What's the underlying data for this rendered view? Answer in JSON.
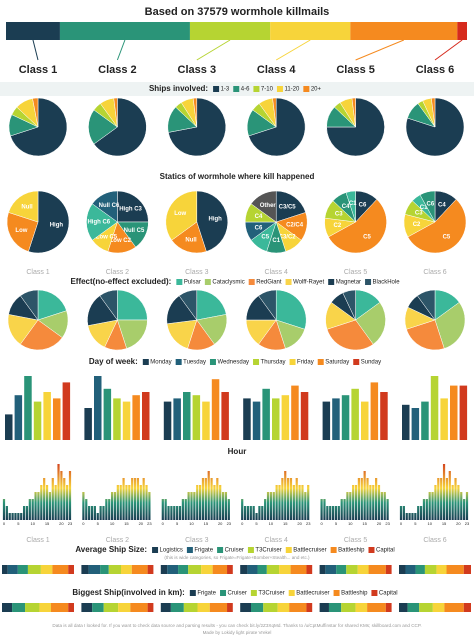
{
  "chart_data": [
    {
      "type": "bar",
      "title": "Based on 37579 wormhole killmails",
      "categories": [
        "Class 1",
        "Class 2",
        "Class 3",
        "Class 4",
        "Class 5",
        "Class 6"
      ],
      "values": [
        11.7,
        28.2,
        17.4,
        17.4,
        23.2,
        2.1
      ],
      "colors": [
        "#1b3d52",
        "#2a9478",
        "#b6d432",
        "#f7d43a",
        "#f58a1f",
        "#d62a1d"
      ]
    },
    {
      "type": "pie",
      "title": "Ships involved:",
      "categories": [
        "1-3",
        "4-6",
        "7-10",
        "11-20",
        "20+"
      ],
      "colors": [
        "#1b3d52",
        "#2a9478",
        "#b6d432",
        "#f7d43a",
        "#f58a1f"
      ],
      "series": [
        {
          "values": [
            70,
            12,
            5,
            10,
            3
          ]
        },
        {
          "values": [
            65,
            20,
            5,
            8,
            2
          ]
        },
        {
          "values": [
            72,
            15,
            4,
            7,
            2
          ]
        },
        {
          "values": [
            70,
            15,
            5,
            8,
            2
          ]
        },
        {
          "values": [
            75,
            12,
            4,
            7,
            2
          ]
        },
        {
          "values": [
            80,
            10,
            3,
            5,
            2
          ]
        }
      ]
    },
    {
      "type": "pie",
      "title": "Statics of wormhole where kill happened",
      "series": [
        {
          "labels": [
            "High",
            "Low",
            "Null"
          ],
          "colors": [
            "#1b3d52",
            "#f58a1f",
            "#f7d43a"
          ],
          "values": [
            55,
            25,
            20
          ]
        },
        {
          "labels": [
            "High C3",
            "Null C5",
            "Low C2",
            "Low C5",
            "High C6",
            "Null C6"
          ],
          "colors": [
            "#1b3d52",
            "#2a9478",
            "#f58a1f",
            "#f7d43a",
            "#3bb89a",
            "#22607a"
          ],
          "values": [
            25,
            15,
            15,
            10,
            20,
            15
          ]
        },
        {
          "labels": [
            "High",
            "Null",
            "Low"
          ],
          "colors": [
            "#1b3d52",
            "#f58a1f",
            "#f7d43a"
          ],
          "values": [
            45,
            20,
            35
          ]
        },
        {
          "labels": [
            "C3/C5",
            "C2/C4",
            "C3/C2",
            "C1",
            "C5",
            "C6",
            "C4",
            "Other"
          ],
          "colors": [
            "#1b3d52",
            "#f58a1f",
            "#f7d43a",
            "#2a9478",
            "#3bb89a",
            "#22607a",
            "#b6d432",
            "#555555"
          ],
          "values": [
            20,
            15,
            10,
            10,
            10,
            10,
            10,
            15
          ]
        },
        {
          "labels": [
            "C6",
            "C5",
            "C2",
            "C3",
            "C4",
            "C1"
          ],
          "colors": [
            "#1b3d52",
            "#f58a1f",
            "#f7d43a",
            "#b6d432",
            "#2a9478",
            "#3bb89a"
          ],
          "values": [
            12,
            55,
            10,
            10,
            8,
            5
          ]
        },
        {
          "labels": [
            "C4",
            "C5",
            "C2",
            "C3",
            "C1",
            "C6"
          ],
          "colors": [
            "#1b3d52",
            "#f58a1f",
            "#f7d43a",
            "#b6d432",
            "#3bb89a",
            "#2a9478"
          ],
          "values": [
            12,
            55,
            12,
            8,
            5,
            8
          ]
        }
      ]
    },
    {
      "type": "pie",
      "title": "Effect(no-effect excluded):",
      "categories": [
        "Pulsar",
        "Cataclysmic",
        "RedGiant",
        "Wolff-Rayet",
        "Magnetar",
        "BlackHole"
      ],
      "colors": [
        "#3bb89a",
        "#a8cd6b",
        "#f58a3c",
        "#f9d44a",
        "#1b3d52",
        "#2d5568"
      ],
      "series": [
        {
          "values": [
            20,
            15,
            25,
            18,
            12,
            10
          ]
        },
        {
          "values": [
            25,
            20,
            12,
            15,
            18,
            10
          ]
        },
        {
          "values": [
            22,
            18,
            15,
            18,
            17,
            10
          ]
        },
        {
          "values": [
            30,
            15,
            15,
            15,
            15,
            10
          ]
        },
        {
          "values": [
            15,
            25,
            30,
            15,
            8,
            7
          ]
        },
        {
          "values": [
            15,
            30,
            25,
            12,
            8,
            10
          ]
        }
      ]
    },
    {
      "type": "bar",
      "title": "Day of week:",
      "categories": [
        "Monday",
        "Tuesday",
        "Wednesday",
        "Thursday",
        "Friday",
        "Saturday",
        "Sunday"
      ],
      "colors": [
        "#1b3d52",
        "#22607a",
        "#2a9478",
        "#b6d432",
        "#f7d43a",
        "#f58a1f",
        "#d13a1e"
      ],
      "series": [
        {
          "values": [
            8,
            14,
            20,
            12,
            15,
            13,
            18
          ]
        },
        {
          "values": [
            10,
            20,
            16,
            13,
            12,
            14,
            15
          ]
        },
        {
          "values": [
            12,
            13,
            15,
            14,
            12,
            19,
            15
          ]
        },
        {
          "values": [
            13,
            12,
            16,
            13,
            14,
            17,
            15
          ]
        },
        {
          "values": [
            12,
            13,
            14,
            16,
            12,
            18,
            15
          ]
        },
        {
          "values": [
            11,
            10,
            12,
            20,
            13,
            17,
            17
          ]
        }
      ]
    },
    {
      "type": "histogram",
      "title": "Hour",
      "x": [
        0,
        1,
        2,
        3,
        4,
        5,
        6,
        7,
        8,
        9,
        10,
        11,
        12,
        13,
        14,
        15,
        16,
        17,
        18,
        19,
        20,
        21,
        22,
        23
      ],
      "xlim": [
        0,
        23
      ],
      "xticks": [
        0,
        5,
        10,
        15,
        20,
        23
      ],
      "series": [
        {
          "values": [
            3,
            2,
            1,
            1,
            1,
            1,
            1,
            2,
            2,
            3,
            3,
            4,
            4,
            5,
            6,
            5,
            4,
            6,
            5,
            8,
            7,
            6,
            5,
            7
          ]
        },
        {
          "values": [
            4,
            3,
            2,
            2,
            2,
            1,
            2,
            2,
            3,
            3,
            4,
            4,
            5,
            5,
            6,
            5,
            5,
            6,
            6,
            6,
            5,
            6,
            5,
            4
          ]
        },
        {
          "values": [
            3,
            3,
            2,
            2,
            2,
            2,
            2,
            3,
            3,
            4,
            4,
            4,
            5,
            5,
            6,
            6,
            7,
            6,
            5,
            6,
            5,
            4,
            4,
            3
          ]
        },
        {
          "values": [
            3,
            2,
            2,
            2,
            2,
            1,
            2,
            2,
            3,
            4,
            4,
            4,
            5,
            5,
            6,
            7,
            6,
            6,
            5,
            6,
            5,
            5,
            4,
            5
          ]
        },
        {
          "values": [
            3,
            3,
            2,
            2,
            2,
            2,
            2,
            3,
            3,
            4,
            4,
            5,
            5,
            6,
            6,
            7,
            6,
            5,
            5,
            6,
            5,
            4,
            4,
            3
          ]
        },
        {
          "values": [
            2,
            2,
            1,
            1,
            1,
            1,
            2,
            2,
            3,
            3,
            4,
            4,
            5,
            6,
            6,
            8,
            6,
            7,
            5,
            6,
            5,
            4,
            3,
            4
          ]
        }
      ]
    },
    {
      "type": "stacked",
      "title": "Average Ship Size:",
      "note": "(this is wide categories, so Frigate=Frigate+Bomber+Stealth... and etc.)",
      "categories": [
        "Logistics",
        "Frigate",
        "Cruiser",
        "T3Cruiser",
        "Battlecruiser",
        "Battleship",
        "Capital"
      ],
      "colors": [
        "#1b3d52",
        "#22607a",
        "#2a9478",
        "#b6d432",
        "#f7d43a",
        "#f58a1f",
        "#d13a1e"
      ],
      "series": [
        {
          "values": [
            8,
            14,
            14,
            18,
            16,
            22,
            8
          ]
        },
        {
          "values": [
            10,
            16,
            12,
            17,
            15,
            22,
            8
          ]
        },
        {
          "values": [
            9,
            15,
            14,
            18,
            16,
            20,
            8
          ]
        },
        {
          "values": [
            10,
            14,
            13,
            17,
            16,
            22,
            8
          ]
        },
        {
          "values": [
            8,
            15,
            14,
            16,
            15,
            24,
            8
          ]
        },
        {
          "values": [
            9,
            14,
            13,
            16,
            14,
            24,
            10
          ]
        }
      ]
    },
    {
      "type": "stacked",
      "title": "Biggest Ship(involved in km):",
      "categories": [
        "Frigate",
        "Cruiser",
        "T3Cruiser",
        "Battlecruiser",
        "Battleship",
        "Capital"
      ],
      "colors": [
        "#1b3d52",
        "#2a9478",
        "#b6d432",
        "#f7d43a",
        "#f58a1f",
        "#d13a1e"
      ],
      "series": [
        {
          "values": [
            14,
            18,
            20,
            16,
            24,
            8
          ]
        },
        {
          "values": [
            15,
            16,
            20,
            17,
            24,
            8
          ]
        },
        {
          "values": [
            14,
            18,
            19,
            17,
            24,
            8
          ]
        },
        {
          "values": [
            15,
            17,
            20,
            16,
            24,
            8
          ]
        },
        {
          "values": [
            13,
            17,
            20,
            16,
            26,
            8
          ]
        },
        {
          "values": [
            12,
            16,
            19,
            16,
            27,
            10
          ]
        }
      ]
    }
  ],
  "footer": [
    "Data is all data I looked for. If you want to check data source and parsing results - you can check bit.ly/2Z3XqMd. Thanks to /u/CptMuffinstar for shared KMs; skillboard.com and CCP.",
    "Made by Lokidy light pirate Vrekel"
  ]
}
